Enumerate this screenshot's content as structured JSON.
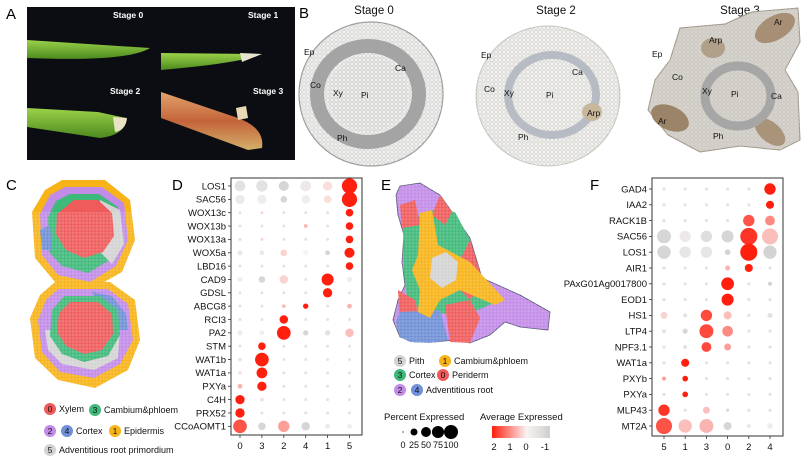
{
  "panels": {
    "A": {
      "label": "A",
      "stages": [
        "Stage 0",
        "Stage 1",
        "Stage 2",
        "Stage 3"
      ]
    },
    "B": {
      "label": "B",
      "stages": [
        "Stage 0",
        "Stage 2",
        "Stage 3"
      ],
      "stage0_annotations": [
        "Ep",
        "Co",
        "Xy",
        "Pi",
        "Ca",
        "Ph"
      ],
      "stage2_annotations": [
        "Ep",
        "Co",
        "Xy",
        "Pi",
        "Ca",
        "Arp",
        "Ph"
      ],
      "stage3_annotations": [
        "Ar",
        "Arp",
        "Ep",
        "Co",
        "Xy",
        "Pi",
        "Ca",
        "Ar",
        "Ph"
      ]
    },
    "C": {
      "label": "C",
      "legend": [
        {
          "id": "0",
          "name": "Xylem",
          "color": "#ef5b5b"
        },
        {
          "id": "3",
          "name": "Cambium&phloem",
          "color": "#3fb97a"
        },
        {
          "id": "2",
          "name": "",
          "color": "#c28be8"
        },
        {
          "id": "4",
          "name": "Cortex",
          "color": "#6f8fd6"
        },
        {
          "id": "1",
          "name": "Epidermis",
          "color": "#f7b318"
        },
        {
          "id": "5",
          "name": "Adventitious root primordium",
          "color": "#d3d3d3"
        }
      ]
    },
    "D": {
      "label": "D"
    },
    "E": {
      "label": "E",
      "legend": [
        {
          "id": "5",
          "name": "Pith",
          "color": "#d3d3d3"
        },
        {
          "id": "1",
          "name": "Cambium&phloem",
          "color": "#f7b318"
        },
        {
          "id": "3",
          "name": "Cortex",
          "color": "#3fb97a"
        },
        {
          "id": "0",
          "name": "Periderm",
          "color": "#ef5b5b"
        },
        {
          "id": "2",
          "name": "",
          "color": "#c28be8"
        },
        {
          "id": "4",
          "name": "Adventitious root",
          "color": "#6f8fd6"
        }
      ],
      "size_legend_title": "Percent Expressed",
      "size_legend_values": [
        "0",
        "25",
        "50",
        "75",
        "100"
      ],
      "color_legend_title": "Average Expressed",
      "color_legend_ticks": [
        "2",
        "1",
        "0",
        "-1"
      ],
      "color_scale": {
        "high": "#ff1f0f",
        "mid": "#f7f7f7",
        "low": "#cfcfcf"
      }
    },
    "F": {
      "label": "F"
    }
  },
  "chart_data": [
    {
      "type": "dotplot",
      "panel": "D",
      "categories": [
        "0",
        "3",
        "2",
        "4",
        "1",
        "5"
      ],
      "genes": [
        "LOS1",
        "SAC56",
        "WOX13c",
        "WOX13b",
        "WOX13a",
        "WOX5a",
        "LBD16",
        "CAD9",
        "GDSL",
        "ABCG8",
        "RCI3",
        "PA2",
        "STM",
        "WAT1b",
        "WAT1a",
        "PXYa",
        "C4H",
        "PRX52",
        "CCoAOMT1"
      ],
      "percent_expressed": [
        [
          40,
          45,
          35,
          40,
          30,
          80
        ],
        [
          30,
          30,
          15,
          25,
          20,
          80
        ],
        [
          3,
          3,
          3,
          3,
          3,
          20
        ],
        [
          3,
          3,
          3,
          5,
          3,
          20
        ],
        [
          3,
          3,
          3,
          3,
          3,
          20
        ],
        [
          10,
          8,
          15,
          10,
          8,
          35
        ],
        [
          3,
          3,
          3,
          3,
          3,
          20
        ],
        [
          8,
          15,
          25,
          3,
          50,
          10
        ],
        [
          3,
          3,
          3,
          3,
          30,
          3
        ],
        [
          3,
          3,
          5,
          10,
          3,
          8
        ],
        [
          3,
          3,
          25,
          3,
          3,
          3
        ],
        [
          10,
          8,
          65,
          10,
          10,
          25
        ],
        [
          3,
          20,
          3,
          3,
          3,
          3
        ],
        [
          5,
          65,
          3,
          3,
          3,
          3
        ],
        [
          5,
          40,
          3,
          3,
          3,
          3
        ],
        [
          8,
          30,
          3,
          3,
          3,
          3
        ],
        [
          30,
          5,
          3,
          3,
          3,
          3
        ],
        [
          30,
          3,
          3,
          3,
          3,
          3
        ],
        [
          65,
          20,
          45,
          25,
          8,
          8
        ]
      ],
      "average_expression": [
        [
          -0.5,
          -0.5,
          -0.8,
          -0.3,
          0.2,
          2
        ],
        [
          -0.3,
          -0.2,
          -0.8,
          -0.2,
          0.2,
          2
        ],
        [
          -0.5,
          0.3,
          -0.5,
          -0.5,
          -0.5,
          2
        ],
        [
          -0.5,
          -0.5,
          -0.5,
          0.6,
          -0.5,
          2
        ],
        [
          -0.5,
          0.3,
          -0.5,
          -0.5,
          -0.5,
          2
        ],
        [
          -0.3,
          -0.3,
          0.3,
          0,
          -0.8,
          2
        ],
        [
          -0.5,
          -0.5,
          -0.5,
          -0.5,
          -0.5,
          2
        ],
        [
          -0.2,
          -0.8,
          0.3,
          -0.5,
          2,
          -0.2
        ],
        [
          -0.5,
          -0.5,
          -0.5,
          -0.5,
          2,
          -0.5
        ],
        [
          -0.5,
          -0.5,
          0.5,
          2,
          -0.5,
          0.6
        ],
        [
          -0.5,
          -0.5,
          2,
          -0.5,
          -0.5,
          -0.5
        ],
        [
          -0.2,
          -0.2,
          2,
          -0.8,
          -0.5,
          0.5
        ],
        [
          -0.5,
          2,
          -0.5,
          -0.5,
          -0.5,
          -0.5
        ],
        [
          0.2,
          2,
          -0.5,
          -0.5,
          -0.5,
          -0.5
        ],
        [
          0.2,
          2,
          -0.5,
          -0.5,
          -0.5,
          -0.5
        ],
        [
          0.6,
          2,
          -0.5,
          -0.5,
          -0.5,
          -0.5
        ],
        [
          2,
          0.2,
          -0.5,
          -0.5,
          -0.5,
          -0.5
        ],
        [
          2,
          -0.5,
          -0.5,
          -0.5,
          -0.5,
          -0.5
        ],
        [
          1.5,
          -0.8,
          0.8,
          -0.8,
          -0.3,
          -0.2
        ]
      ]
    },
    {
      "type": "dotplot",
      "panel": "F",
      "categories": [
        "5",
        "1",
        "3",
        "0",
        "2",
        "4"
      ],
      "genes": [
        "GAD4",
        "IAA2",
        "RACK1B",
        "SAC56",
        "LOS1",
        "AIR1",
        "PAxG01Ag0017800",
        "EOD1",
        "HS1",
        "LTP4",
        "NPF3.1",
        "WAT1a",
        "PXYb",
        "PXYa",
        "MLP43",
        "MT2A"
      ],
      "percent_expressed": [
        [
          3,
          3,
          3,
          3,
          3,
          40
        ],
        [
          3,
          3,
          3,
          3,
          3,
          20
        ],
        [
          3,
          3,
          3,
          3,
          40,
          30
        ],
        [
          60,
          40,
          40,
          45,
          90,
          80
        ],
        [
          55,
          40,
          40,
          10,
          90,
          55
        ],
        [
          3,
          3,
          3,
          8,
          20,
          3
        ],
        [
          3,
          3,
          3,
          50,
          3,
          5
        ],
        [
          3,
          3,
          3,
          45,
          3,
          3
        ],
        [
          15,
          5,
          40,
          20,
          3,
          8
        ],
        [
          5,
          8,
          60,
          35,
          3,
          3
        ],
        [
          3,
          5,
          30,
          15,
          3,
          3
        ],
        [
          3,
          20,
          3,
          3,
          3,
          3
        ],
        [
          5,
          10,
          3,
          3,
          3,
          3
        ],
        [
          3,
          10,
          3,
          3,
          3,
          3
        ],
        [
          40,
          3,
          15,
          3,
          3,
          3
        ],
        [
          80,
          55,
          60,
          20,
          5,
          10
        ]
      ],
      "average_expression": [
        [
          -0.5,
          -0.5,
          -0.5,
          -0.5,
          -0.5,
          2
        ],
        [
          -0.5,
          -0.5,
          -0.5,
          -0.5,
          -0.5,
          2
        ],
        [
          -0.5,
          -0.5,
          -0.5,
          -0.5,
          1.5,
          1
        ],
        [
          -0.8,
          -0.3,
          -0.6,
          -0.8,
          1.8,
          0.5
        ],
        [
          -0.8,
          -0.4,
          -0.4,
          -0.9,
          2,
          -0.9
        ],
        [
          -0.5,
          -0.5,
          -0.5,
          0.6,
          2,
          -0.5
        ],
        [
          -0.5,
          -0.5,
          -0.5,
          2,
          -0.5,
          -0.9
        ],
        [
          -0.5,
          -0.5,
          -0.5,
          2,
          -0.5,
          -0.5
        ],
        [
          0.3,
          -0.5,
          1.6,
          0.5,
          -0.5,
          -0.5
        ],
        [
          -0.5,
          -0.8,
          1.6,
          1,
          -0.5,
          -0.5
        ],
        [
          -0.5,
          -0.5,
          1.6,
          0.8,
          -0.5,
          -0.5
        ],
        [
          -0.5,
          2,
          -0.5,
          -0.5,
          -0.5,
          -0.5
        ],
        [
          0.8,
          2,
          -0.5,
          -0.5,
          -0.5,
          -0.5
        ],
        [
          -0.5,
          2,
          -0.5,
          -0.5,
          -0.5,
          -0.5
        ],
        [
          1.8,
          -0.5,
          0.5,
          -0.8,
          -0.5,
          -0.5
        ],
        [
          1.5,
          0.5,
          0.6,
          -0.8,
          -0.3,
          -0.2
        ]
      ]
    }
  ]
}
